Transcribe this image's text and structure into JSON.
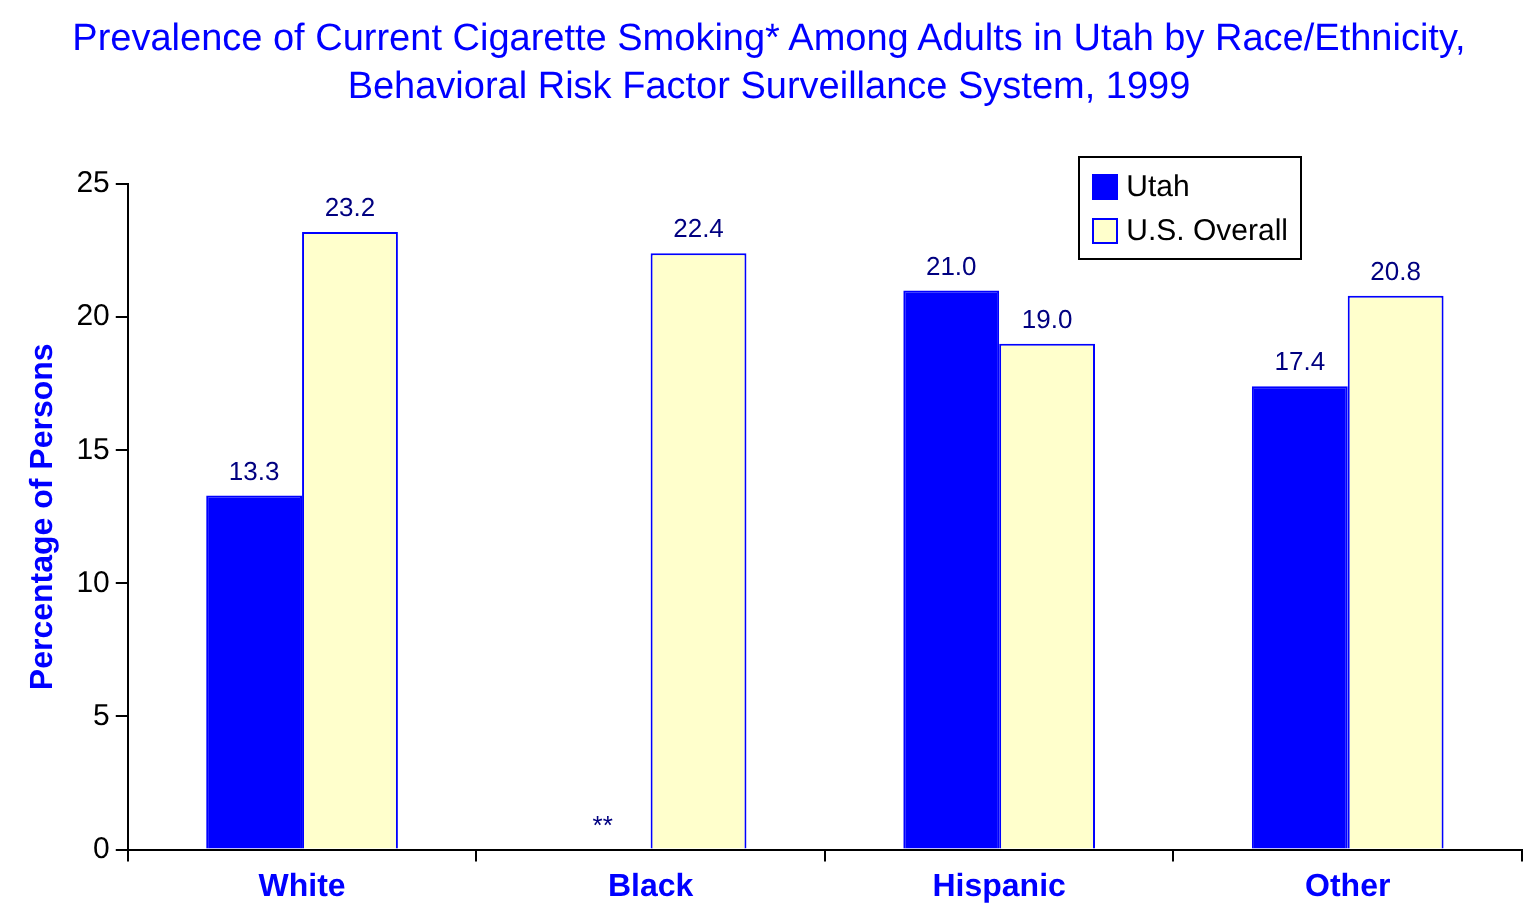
{
  "chart_data": {
    "type": "bar",
    "title": "Prevalence of Current Cigarette Smoking* Among Adults in Utah by Race/Ethnicity, Behavioral Risk Factor Surveillance System, 1999",
    "ylabel": "Percentage of Persons",
    "categories": [
      "White",
      "Black",
      "Hispanic",
      "Other"
    ],
    "series": [
      {
        "name": "Utah",
        "color": "#0000ff",
        "values": [
          13.3,
          null,
          21.0,
          17.4
        ],
        "value_labels": [
          "13.3",
          "**",
          "21.0",
          "17.4"
        ]
      },
      {
        "name": "U.S. Overall",
        "color": "#ffffcc",
        "values": [
          23.2,
          22.4,
          19.0,
          20.8
        ],
        "value_labels": [
          "23.2",
          "22.4",
          "19.0",
          "20.8"
        ]
      }
    ],
    "ylim": [
      0,
      25
    ],
    "yticks": [
      0,
      5,
      10,
      15,
      20,
      25
    ],
    "grid": false,
    "legend": "top right"
  }
}
